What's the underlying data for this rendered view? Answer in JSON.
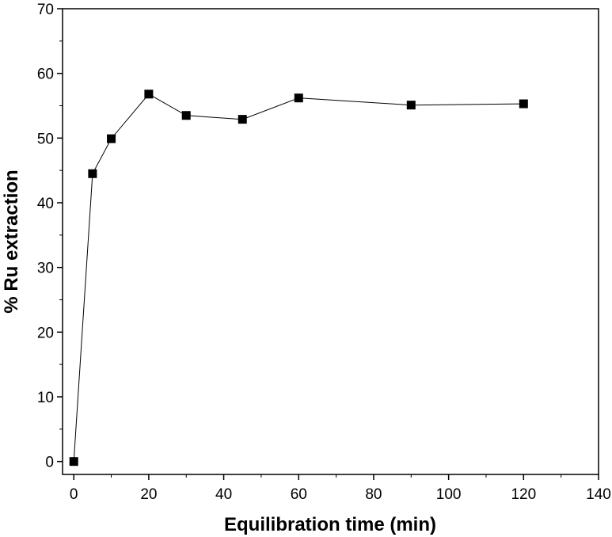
{
  "chart_data": {
    "type": "line",
    "title": "",
    "xlabel": "Equilibration time (min)",
    "ylabel": "% Ru extraction",
    "xlim": [
      -3,
      140
    ],
    "ylim": [
      -2,
      70
    ],
    "xticks": [
      0,
      20,
      40,
      60,
      80,
      100,
      120,
      140
    ],
    "yticks": [
      0,
      10,
      20,
      30,
      40,
      50,
      60,
      70
    ],
    "grid": false,
    "legend": "none",
    "marker": "square",
    "colors": {
      "line": "#000000",
      "marker": "#000000"
    },
    "series": [
      {
        "x": [
          0,
          5,
          10,
          20,
          30,
          45,
          60,
          90,
          120
        ],
        "y": [
          0,
          44.5,
          49.9,
          56.8,
          53.5,
          52.9,
          56.2,
          55.1,
          55.3
        ]
      }
    ]
  }
}
